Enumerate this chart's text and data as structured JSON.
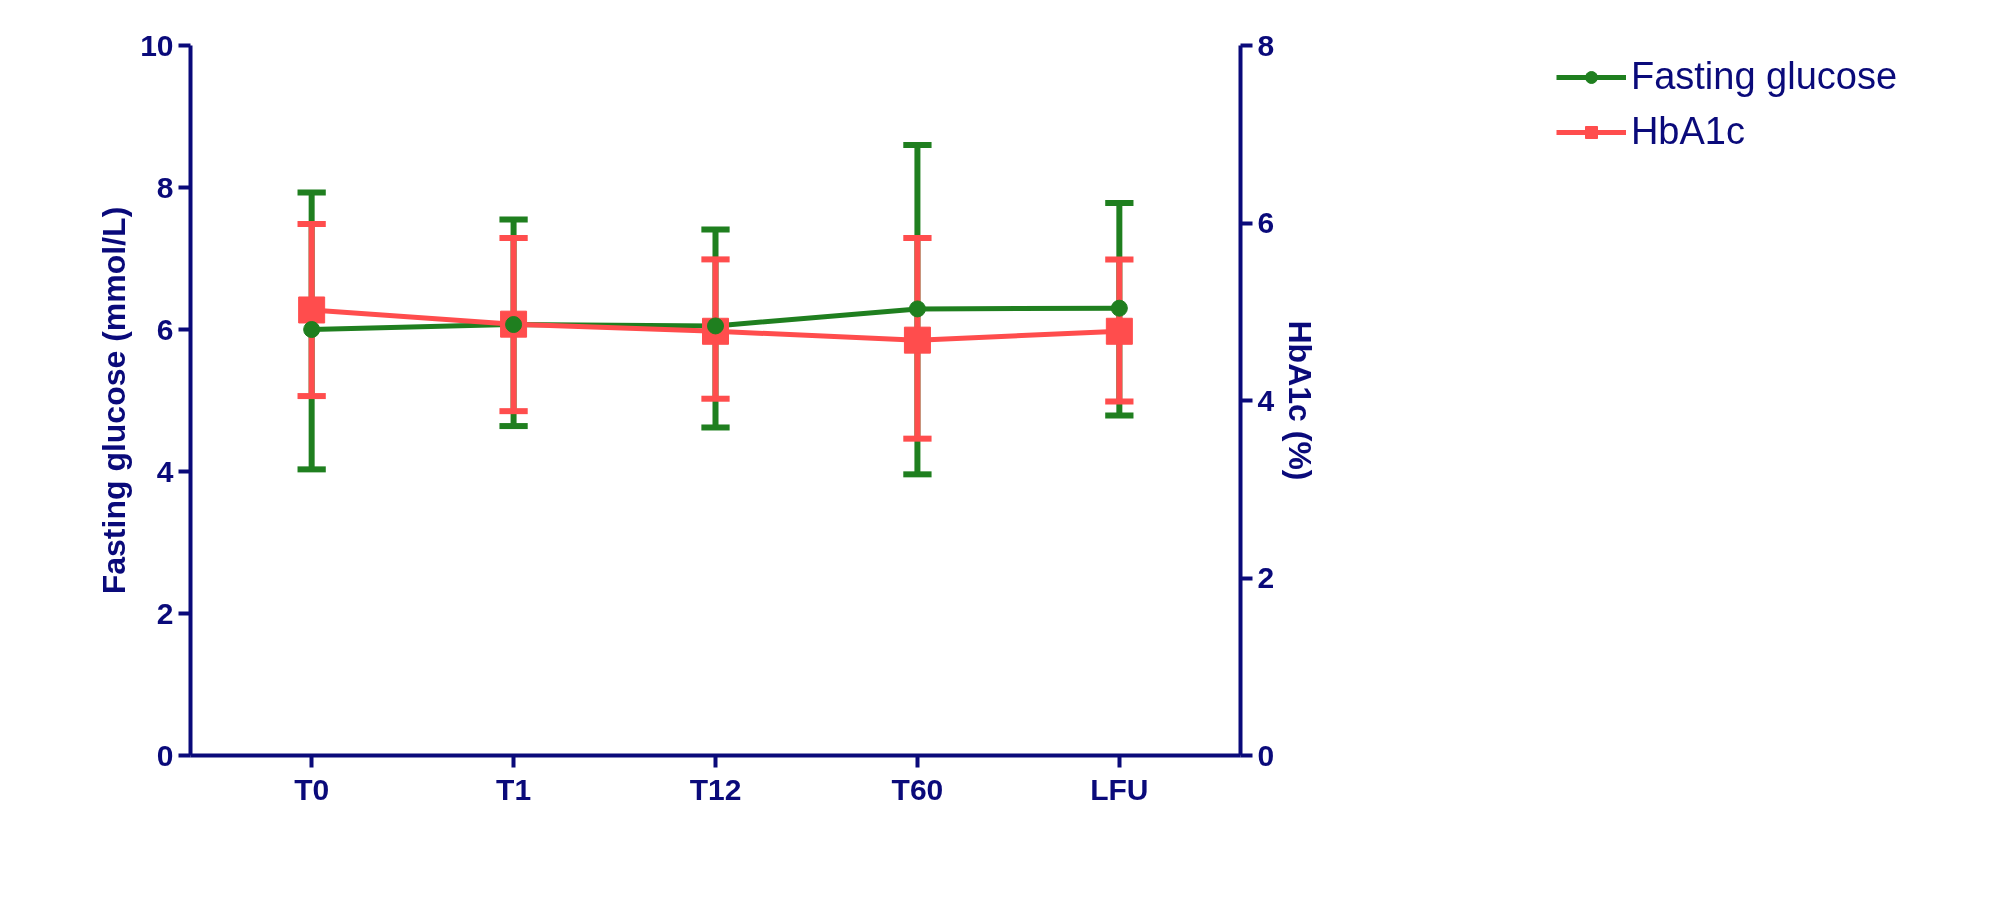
{
  "chart_data": {
    "type": "line",
    "categories": [
      "T0",
      "T1",
      "T12",
      "T60",
      "LFU"
    ],
    "ylabel": "Fasting glucose (mmol/L)",
    "y2label": "HbA1c (%)",
    "ylim": [
      0,
      10
    ],
    "yticks": [
      0,
      2,
      4,
      6,
      8,
      10
    ],
    "y2lim": [
      0,
      8
    ],
    "y2ticks": [
      0,
      2,
      4,
      6,
      8
    ],
    "grid": false,
    "legend": "top right",
    "series": [
      {
        "name": "Fasting glucose",
        "color": "#1f7f1f",
        "marker": "circle",
        "values": [
          6.0,
          6.07,
          6.05,
          6.29,
          6.3
        ],
        "errors": [
          [
            4.03,
            7.93
          ],
          [
            4.64,
            7.55
          ],
          [
            4.62,
            7.41
          ],
          [
            3.96,
            8.6
          ],
          [
            4.79,
            7.78
          ]
        ]
      },
      {
        "name": "HbA1c",
        "color": "#ff4d4d",
        "marker": "square",
        "axis": "y2",
        "values": [
          5.02,
          4.86,
          4.78,
          4.68,
          4.78
        ],
        "errors": [
          [
            4.05,
            5.99
          ],
          [
            3.88,
            5.83
          ],
          [
            4.02,
            5.59
          ],
          [
            3.57,
            5.83
          ],
          [
            3.99,
            5.59
          ]
        ]
      }
    ]
  }
}
